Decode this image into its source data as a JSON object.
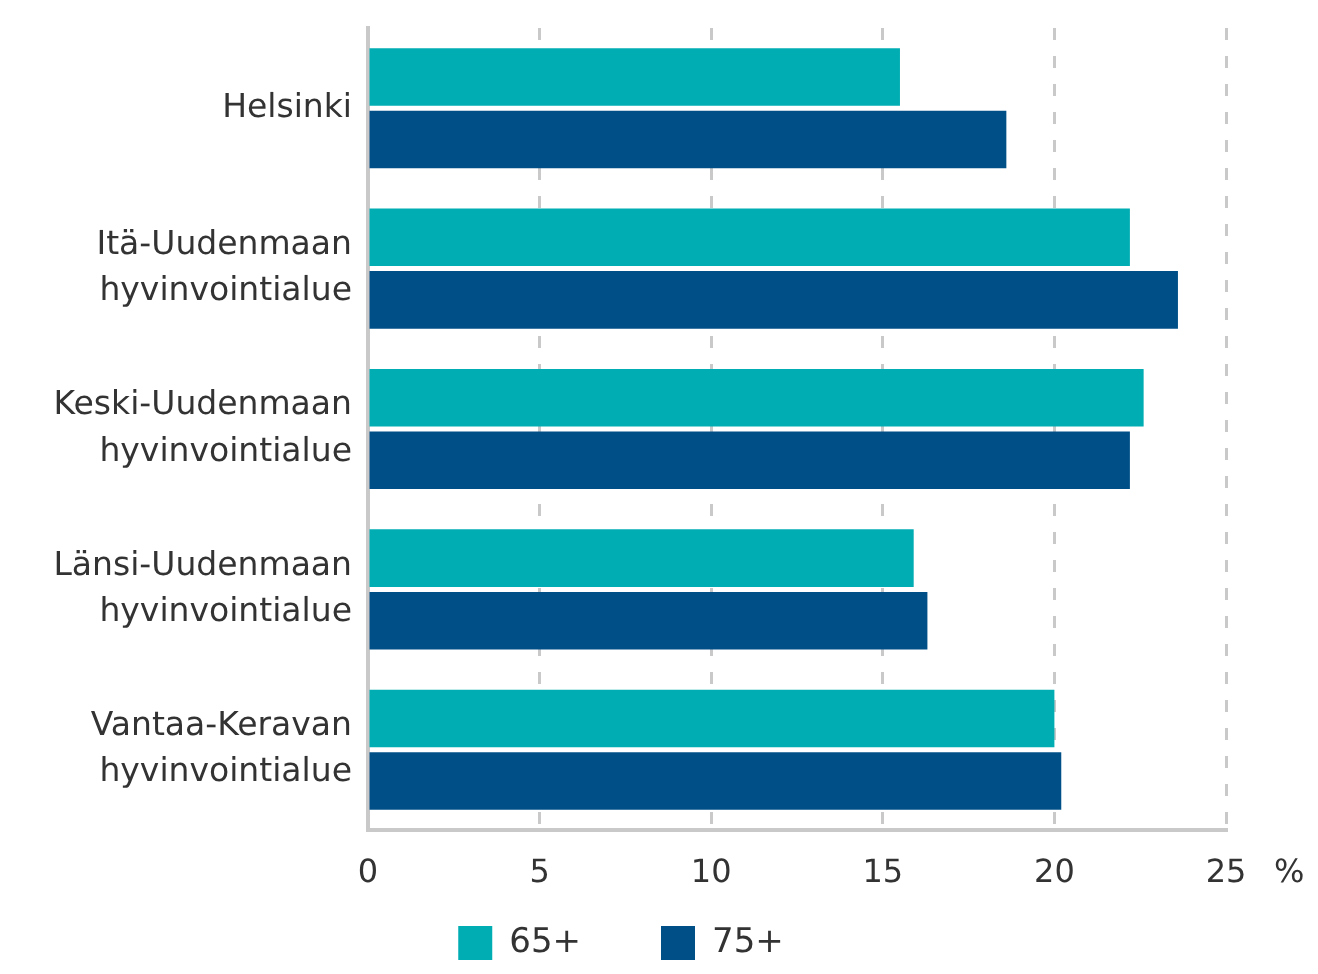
{
  "chart_data": {
    "type": "bar",
    "orientation": "horizontal",
    "categories": [
      "Helsinki",
      "Itä-Uudenmaan hyvinvointialue",
      "Keski-Uudenmaan hyvinvointialue",
      "Länsi-Uudenmaan hyvinvointialue",
      "Vantaa-Keravan hyvinvointialue"
    ],
    "series": [
      {
        "name": "65+",
        "color": "#00adb3",
        "values": [
          15.5,
          22.2,
          22.6,
          15.9,
          20.0
        ]
      },
      {
        "name": "75+",
        "color": "#005087",
        "values": [
          18.6,
          23.6,
          22.2,
          16.3,
          20.2
        ]
      }
    ],
    "xlim": [
      0,
      25
    ],
    "xticks": [
      0,
      5,
      10,
      15,
      20,
      25
    ],
    "xlabel": "%",
    "grid": "x",
    "legend": "bottom"
  }
}
